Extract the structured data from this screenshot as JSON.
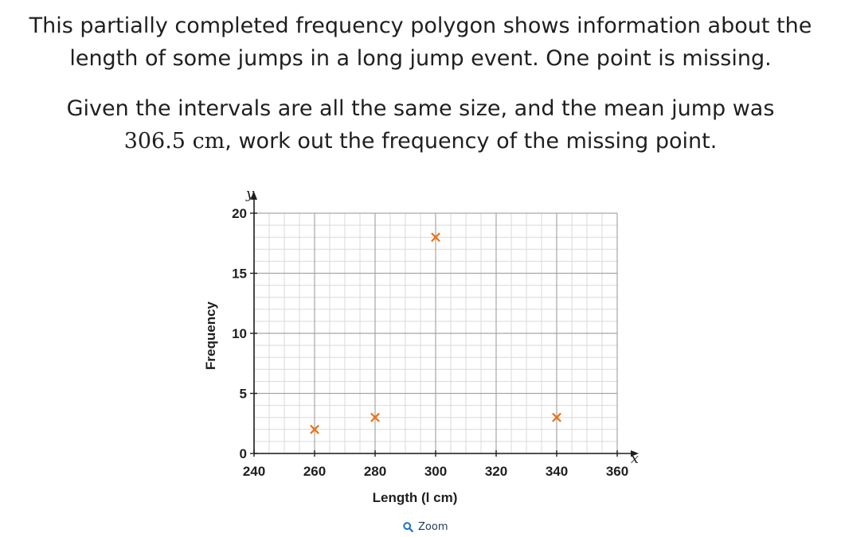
{
  "question": {
    "line1": "This partially completed frequency polygon shows information about the",
    "line2": "length of some jumps in a long jump event. One point is missing.",
    "line3": "Given the intervals are all the same size, and the mean jump was",
    "line4_value": "306.5 cm",
    "line4_rest": ", work out the frequency of the missing point."
  },
  "chart_data": {
    "type": "scatter",
    "xlabel": "Length (l cm)",
    "ylabel": "Frequency",
    "x_var": "x",
    "y_var": "y",
    "xlim": [
      240,
      360
    ],
    "ylim": [
      0,
      20
    ],
    "x_ticks": [
      240,
      260,
      280,
      300,
      320,
      340,
      360
    ],
    "y_ticks": [
      0,
      5,
      10,
      15,
      20
    ],
    "x_minor_step": 5,
    "y_minor_step": 1,
    "grid": true,
    "marker": "x",
    "marker_color": "#e8731c",
    "points": [
      {
        "x": 260,
        "y": 2
      },
      {
        "x": 280,
        "y": 3
      },
      {
        "x": 300,
        "y": 18
      },
      {
        "x": 340,
        "y": 3
      }
    ]
  },
  "zoom": {
    "icon": "magnifier-icon",
    "label": "Zoom"
  }
}
